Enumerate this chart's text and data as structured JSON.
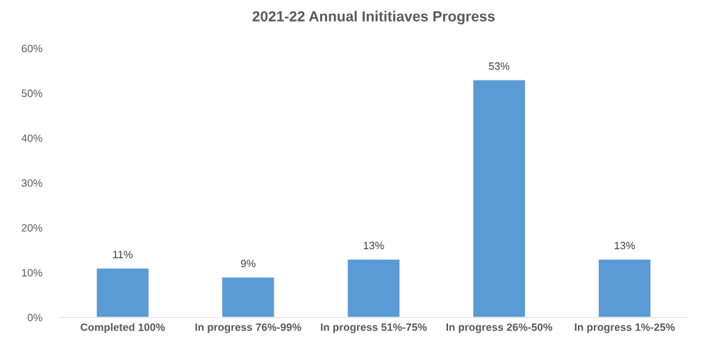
{
  "chart_data": {
    "type": "bar",
    "title": "2021-22 Annual Inititiaves Progress",
    "categories": [
      "Completed 100%",
      "In progress 76%-99%",
      "In progress 51%-75%",
      "In progress 26%-50%",
      "In progress 1%-25%"
    ],
    "values": [
      11,
      9,
      13,
      53,
      13
    ],
    "value_labels": [
      "11%",
      "9%",
      "13%",
      "53%",
      "13%"
    ],
    "color": "#5b9bd5",
    "ylim": [
      0,
      60
    ],
    "yticks": [
      {
        "value": 0,
        "label": "0%"
      },
      {
        "value": 10,
        "label": "10%"
      },
      {
        "value": 20,
        "label": "20%"
      },
      {
        "value": 30,
        "label": "30%"
      },
      {
        "value": 40,
        "label": "40%"
      },
      {
        "value": 50,
        "label": "50%"
      },
      {
        "value": 60,
        "label": "60%"
      }
    ],
    "grid": false
  }
}
